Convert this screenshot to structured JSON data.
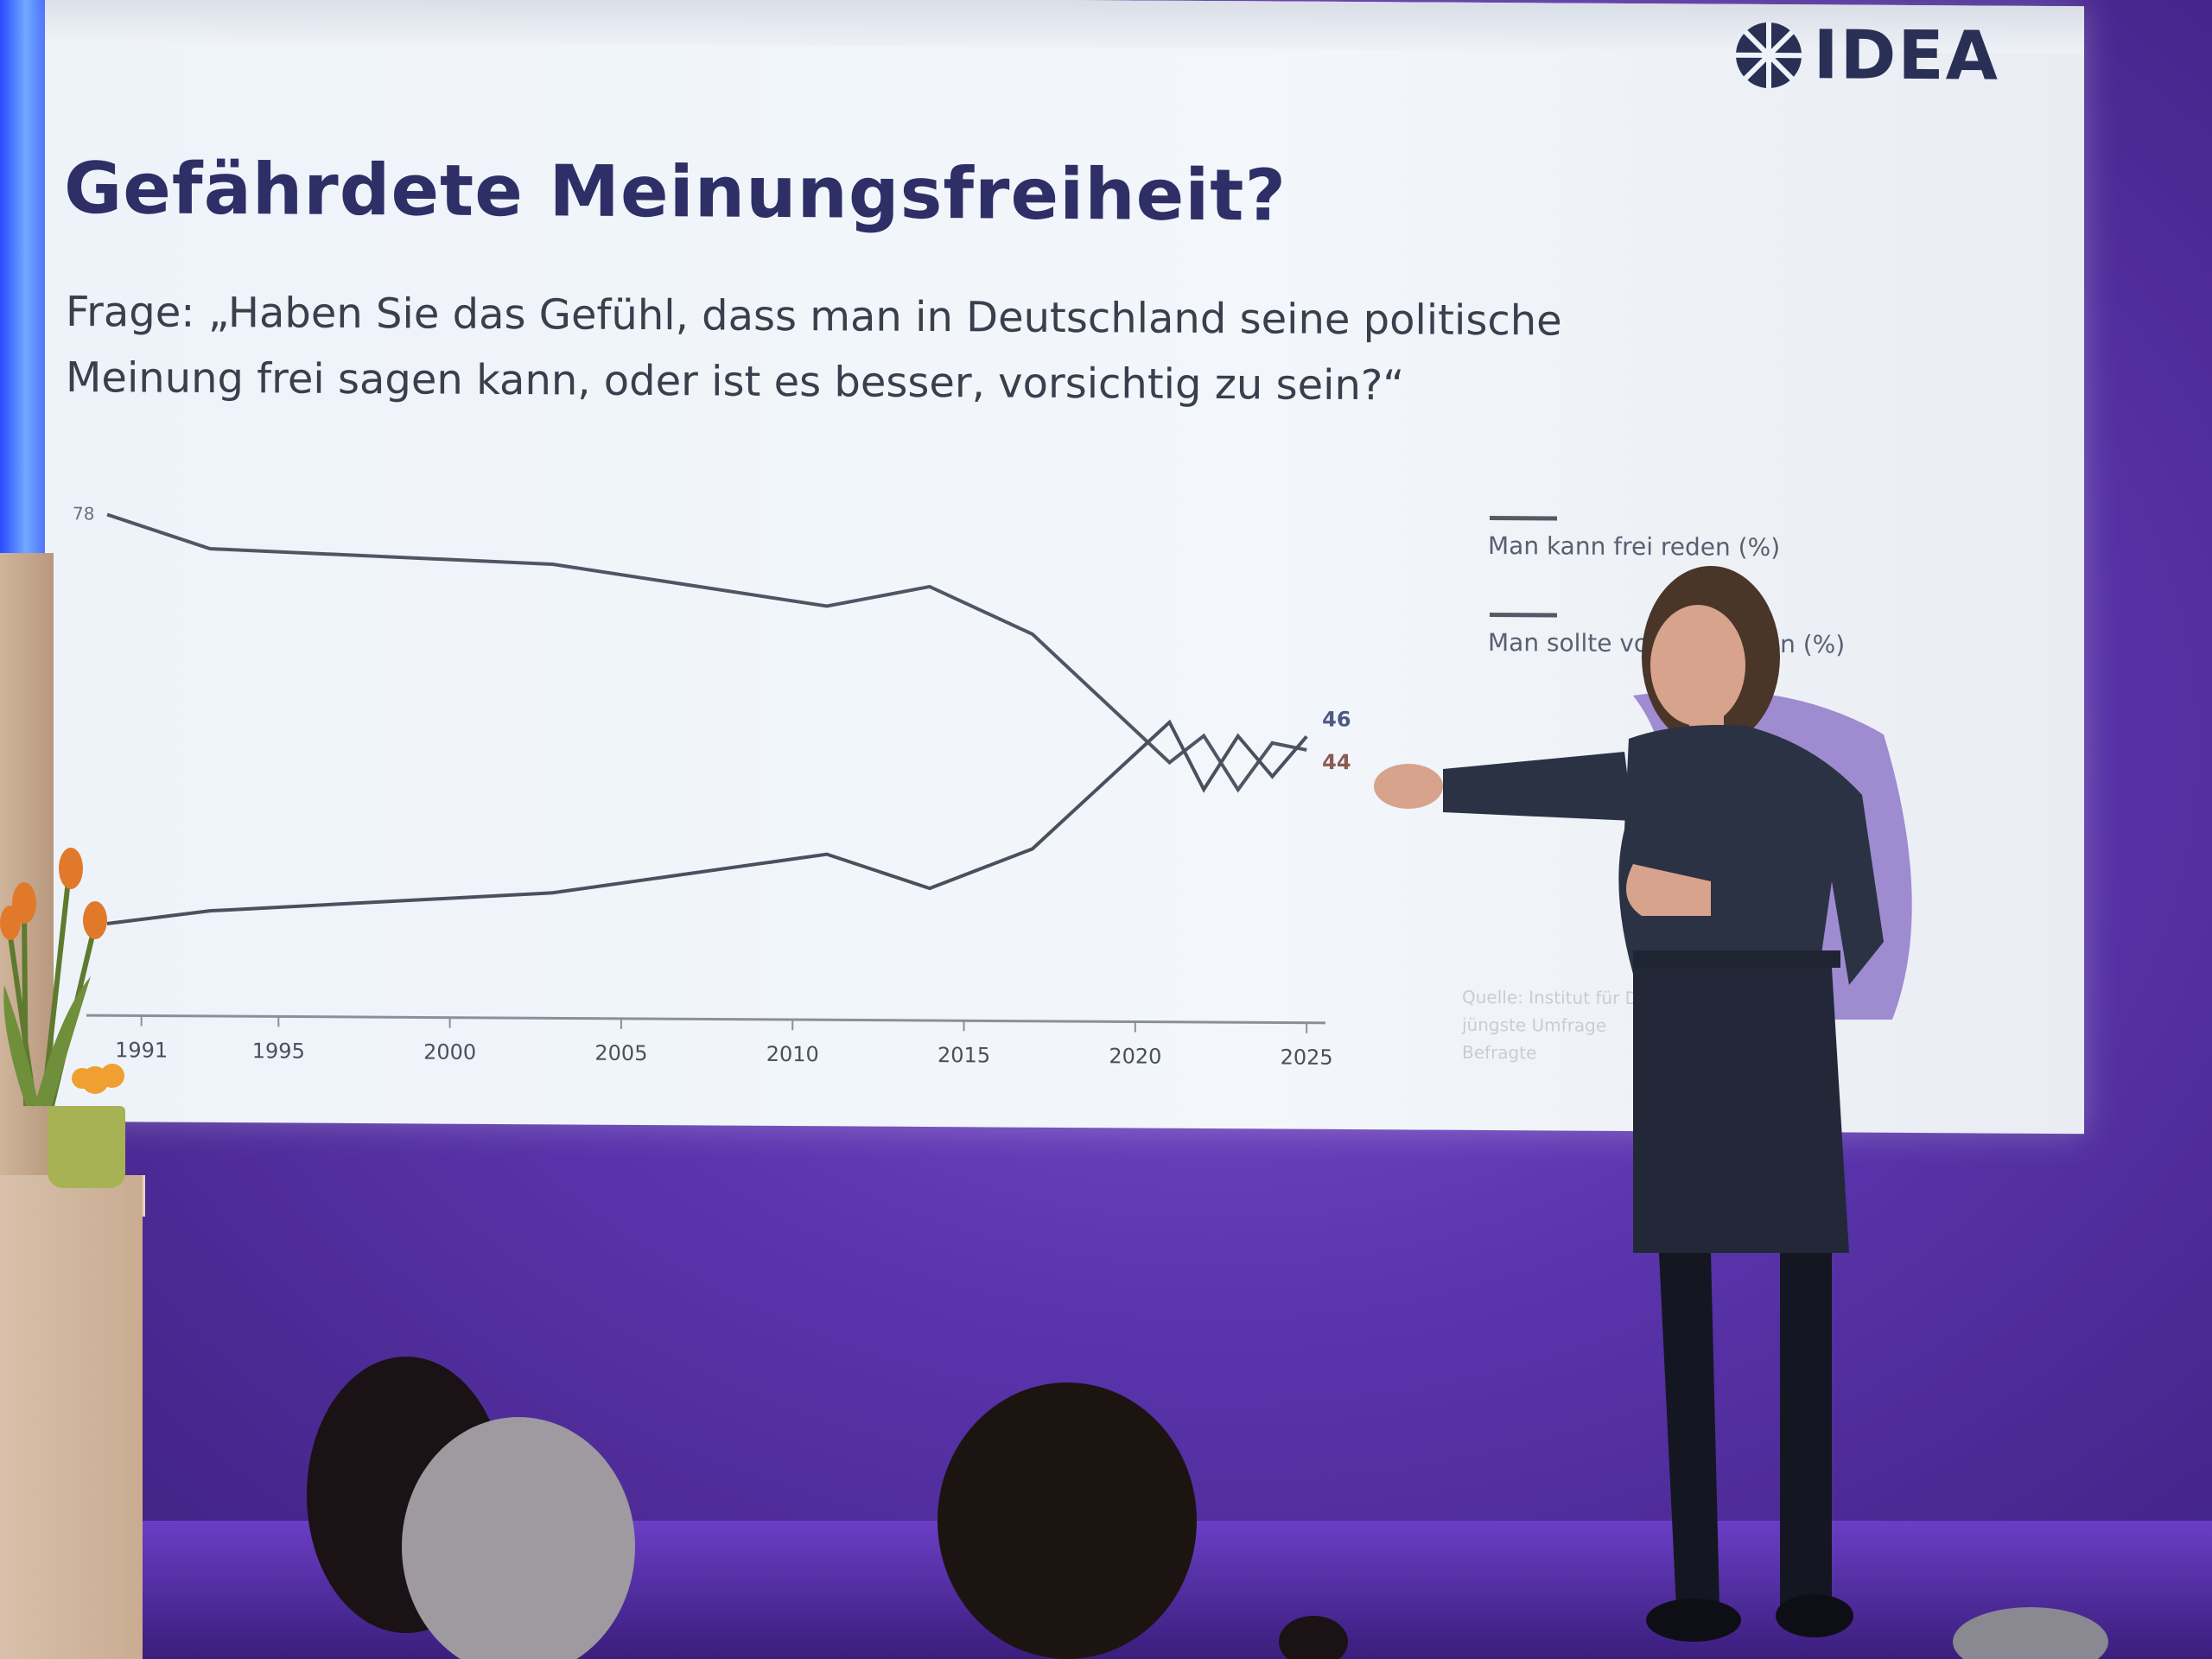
{
  "slide": {
    "logo_text": "IDEA",
    "title": "Gefährdete Meinungsfreiheit?",
    "question_line1": "Frage: „Haben Sie das Gefühl, dass man in Deutschland seine politische",
    "question_line2": "Meinung frei sagen kann, oder ist es besser, vorsichtig zu sein?“",
    "legend": {
      "item1": "Man kann frei reden (%)",
      "item2": "Man sollte vorsichtig sein (%)"
    },
    "source_line1": "Quelle: Institut für D",
    "source_line2": "jüngste Umfrage",
    "source_line3": "Befragte"
  },
  "chart_data": {
    "type": "line",
    "x_ticks": [
      "1991",
      "1995",
      "2000",
      "2005",
      "2010",
      "2015",
      "2020",
      "2025"
    ],
    "xlim": [
      1990,
      2025.5
    ],
    "ylim": [
      10,
      85
    ],
    "series": [
      {
        "name": "Man kann frei reden (%)",
        "points": [
          [
            1990,
            78
          ],
          [
            1993,
            73
          ],
          [
            2003,
            71
          ],
          [
            2011,
            65
          ],
          [
            2014,
            68
          ],
          [
            2017,
            61
          ],
          [
            2021,
            42
          ],
          [
            2022,
            46
          ],
          [
            2023,
            38
          ],
          [
            2024,
            45
          ],
          [
            2025,
            44
          ]
        ],
        "end_label": "44"
      },
      {
        "name": "Man sollte vorsichtig sein (%)",
        "points": [
          [
            1990,
            17
          ],
          [
            1993,
            19
          ],
          [
            2003,
            22
          ],
          [
            2011,
            28
          ],
          [
            2014,
            23
          ],
          [
            2017,
            29
          ],
          [
            2021,
            48
          ],
          [
            2022,
            38
          ],
          [
            2023,
            46
          ],
          [
            2024,
            40
          ],
          [
            2025,
            46
          ]
        ],
        "end_label": "46"
      }
    ],
    "y_label_start_top": "78",
    "colors": {
      "line_top": "#4f5563",
      "line_bottom": "#4a505e",
      "label_44": "#8b5a52",
      "label_46": "#4c5a84"
    }
  },
  "colors": {
    "title": "#2e2f66",
    "stage_purple": "#5b34ad",
    "screen": "#eef3fa"
  }
}
